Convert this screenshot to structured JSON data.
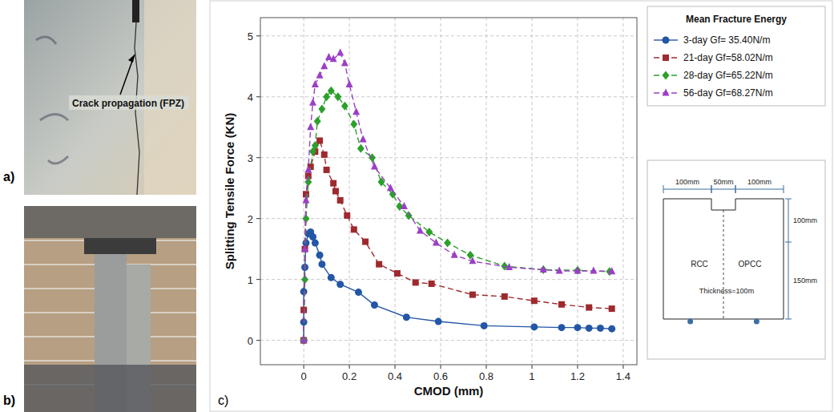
{
  "chart_data": {
    "type": "line",
    "panel_label": "c)",
    "x_label": "CMOD (mm)",
    "y_label": "Splitting Tensile Force (KN)",
    "legend_title": "Mean Fracture Energy",
    "legend": "outside-top-right",
    "grid": true,
    "xlim": [
      -0.19,
      1.46
    ],
    "xticks": [
      0,
      0.2,
      0.4,
      0.6,
      0.8,
      1,
      1.2,
      1.4
    ],
    "ylim": [
      -0.4,
      5.3
    ],
    "yticks": [
      0,
      1,
      2,
      3,
      4,
      5
    ],
    "series": [
      {
        "name": "3-day Gf= 35.40N/m",
        "color": "#2456a6",
        "marker": "circle",
        "line_style": "solid",
        "x": [
          0,
          0,
          0,
          0.005,
          0.01,
          0.02,
          0.03,
          0.04,
          0.05,
          0.07,
          0.08,
          0.12,
          0.16,
          0.24,
          0.31,
          0.45,
          0.59,
          0.79,
          1.01,
          1.13,
          1.2,
          1.25,
          1.3,
          1.35
        ],
        "values": [
          0,
          0.3,
          0.8,
          1.2,
          1.6,
          1.75,
          1.78,
          1.7,
          1.6,
          1.4,
          1.25,
          1.03,
          0.92,
          0.79,
          0.58,
          0.38,
          0.31,
          0.24,
          0.22,
          0.21,
          0.21,
          0.2,
          0.2,
          0.19
        ]
      },
      {
        "name": "21-day Gf=58.02N/m",
        "color": "#9e2a2f",
        "marker": "square",
        "line_style": "dashed",
        "x": [
          0,
          0,
          0.005,
          0.01,
          0.02,
          0.03,
          0.05,
          0.07,
          0.09,
          0.1,
          0.13,
          0.14,
          0.16,
          0.19,
          0.22,
          0.27,
          0.33,
          0.41,
          0.49,
          0.56,
          0.74,
          0.88,
          1.01,
          1.13,
          1.25,
          1.35
        ],
        "values": [
          0,
          0.5,
          1.5,
          2.4,
          2.7,
          2.85,
          3.1,
          3.28,
          3.05,
          2.8,
          2.58,
          2.45,
          2.3,
          2.05,
          1.82,
          1.62,
          1.25,
          1.1,
          0.95,
          0.93,
          0.75,
          0.72,
          0.65,
          0.59,
          0.54,
          0.52
        ]
      },
      {
        "name": "28-day Gf=65.22N/m",
        "color": "#2ca02c",
        "marker": "diamond",
        "line_style": "dashed",
        "x": [
          0,
          0.005,
          0.01,
          0.02,
          0.04,
          0.05,
          0.06,
          0.08,
          0.1,
          0.12,
          0.15,
          0.18,
          0.22,
          0.25,
          0.3,
          0.34,
          0.39,
          0.42,
          0.46,
          0.55,
          0.63,
          0.73,
          0.88,
          1.05,
          1.2,
          1.34
        ],
        "values": [
          0,
          1.0,
          2.0,
          2.6,
          3.1,
          3.2,
          3.6,
          3.8,
          4.0,
          4.1,
          4.0,
          3.85,
          3.55,
          3.15,
          3.0,
          2.6,
          2.4,
          2.2,
          2.05,
          1.78,
          1.6,
          1.4,
          1.22,
          1.16,
          1.15,
          1.13
        ]
      },
      {
        "name": "56-day Gf=68.27N/m",
        "color": "#9b3fc5",
        "marker": "triangle",
        "line_style": "dashed",
        "x": [
          0,
          0.005,
          0.01,
          0.02,
          0.03,
          0.04,
          0.05,
          0.07,
          0.09,
          0.11,
          0.13,
          0.16,
          0.18,
          0.2,
          0.23,
          0.26,
          0.31,
          0.38,
          0.44,
          0.51,
          0.58,
          0.66,
          0.74,
          0.9,
          1.05,
          1.12,
          1.2,
          1.27,
          1.35
        ],
        "values": [
          0,
          1.5,
          2.3,
          2.8,
          3.5,
          3.9,
          4.2,
          4.35,
          4.5,
          4.65,
          4.62,
          4.72,
          4.55,
          4.2,
          3.75,
          3.3,
          2.85,
          2.5,
          2.2,
          1.8,
          1.6,
          1.4,
          1.3,
          1.2,
          1.16,
          1.14,
          1.14,
          1.14,
          1.13
        ]
      }
    ]
  },
  "figure": {
    "panels": [
      {
        "label": "a)",
        "annotation": "Crack propagation (FPZ)"
      },
      {
        "label": "b)"
      }
    ],
    "diagram": {
      "top_dims": [
        "100mm",
        "50mm",
        "100mm"
      ],
      "side_dims": [
        "100mm",
        "150mm"
      ],
      "left_material": "RCC",
      "right_material": "OPCC",
      "thickness": "Thickness=100m"
    }
  }
}
